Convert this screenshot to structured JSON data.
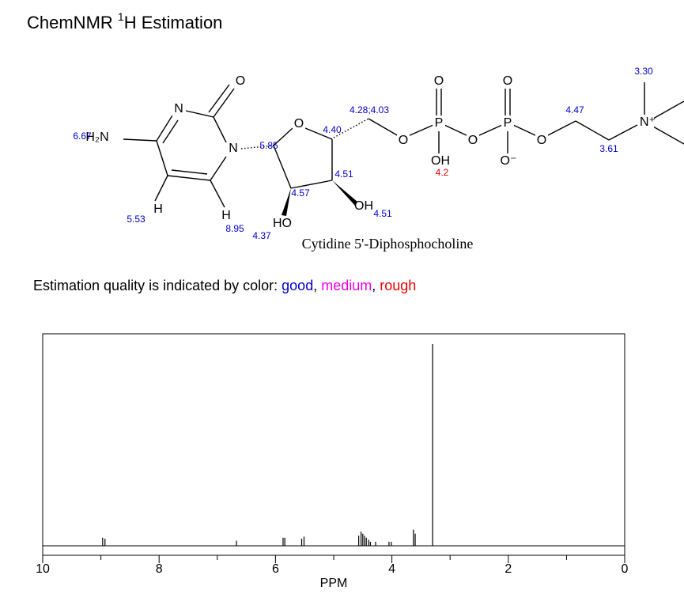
{
  "header": {
    "title": {
      "prefix": "ChemNMR ",
      "sup": "1",
      "suffix": "H Estimation"
    }
  },
  "structure": {
    "name": "Cytidine 5'-Diphosphocholine",
    "atoms": [
      "O",
      "N",
      "N",
      "H₂N",
      "H",
      "H",
      "O",
      "HO",
      "OH",
      "O",
      "P",
      "O",
      "OH",
      "O",
      "P",
      "O",
      "O⁻",
      "O",
      "N⁺"
    ],
    "shifts": [
      {
        "text": "6.67",
        "quality": 0
      },
      {
        "text": "5.53",
        "quality": 0
      },
      {
        "text": "8.95",
        "quality": 0
      },
      {
        "text": "4.37",
        "quality": 0
      },
      {
        "text": "5.85",
        "quality": 0
      },
      {
        "text": "4.40",
        "quality": 0
      },
      {
        "text": "4.28;4.03",
        "quality": 0
      },
      {
        "text": "4.51",
        "quality": 0
      },
      {
        "text": "4.57",
        "quality": 0
      },
      {
        "text": "4.51",
        "quality": 0
      },
      {
        "text": "4.2",
        "quality": 2
      },
      {
        "text": "4.47",
        "quality": 0
      },
      {
        "text": "3.61",
        "quality": 0
      },
      {
        "text": "3.30",
        "quality": 0
      }
    ]
  },
  "quality_legend": {
    "text": "Estimation quality is indicated by color: ",
    "separator": ", ",
    "items": [
      {
        "label": "good",
        "color": "#0000cc"
      },
      {
        "label": "medium",
        "color": "#ee00ee"
      },
      {
        "label": "rough",
        "color": "#ee0000"
      }
    ]
  },
  "chart_data": {
    "type": "spectrum",
    "x_label": "PPM",
    "xlim": [
      10,
      0
    ],
    "xticks": [
      10,
      8,
      6,
      4,
      2,
      0
    ],
    "minor_xticks": [
      9,
      7,
      5,
      3,
      1
    ],
    "ylim": [
      0,
      100
    ],
    "color": "#000000",
    "x": [
      8.97,
      8.93,
      6.67,
      5.87,
      5.84,
      5.55,
      5.51,
      4.57,
      4.53,
      4.5,
      4.47,
      4.44,
      4.4,
      4.37,
      4.28,
      4.05,
      4.01,
      3.63,
      3.6,
      3.3
    ],
    "values": [
      4,
      3.5,
      2.5,
      4,
      4,
      3.5,
      4.5,
      5,
      7,
      6,
      5,
      4,
      3,
      2,
      2,
      2,
      2,
      8,
      6,
      100
    ]
  }
}
